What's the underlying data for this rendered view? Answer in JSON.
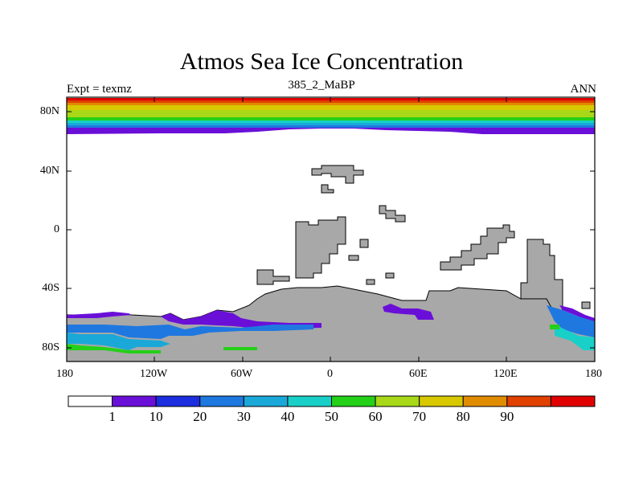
{
  "title": "Atmos Sea Ice Concentration",
  "subtitle": "385_2_MaBP",
  "left_label": "Expt = texmz",
  "right_label": "ANN",
  "x_ticks": [
    "180",
    "120W",
    "60W",
    "0",
    "60E",
    "120E",
    "180"
  ],
  "y_ticks": [
    "80N",
    "40N",
    "0",
    "40S",
    "80S"
  ],
  "colorbar": {
    "labels": [
      "1",
      "10",
      "20",
      "30",
      "40",
      "50",
      "60",
      "70",
      "80",
      "90"
    ],
    "colors": [
      "#ffffff",
      "#6a0fd8",
      "#1c2ee0",
      "#1f78e0",
      "#1aa8d8",
      "#18d0c8",
      "#24d018",
      "#a8d818",
      "#d8c800",
      "#e08c00",
      "#e04000",
      "#e00000"
    ]
  },
  "land_color": "#a8a8a8"
}
